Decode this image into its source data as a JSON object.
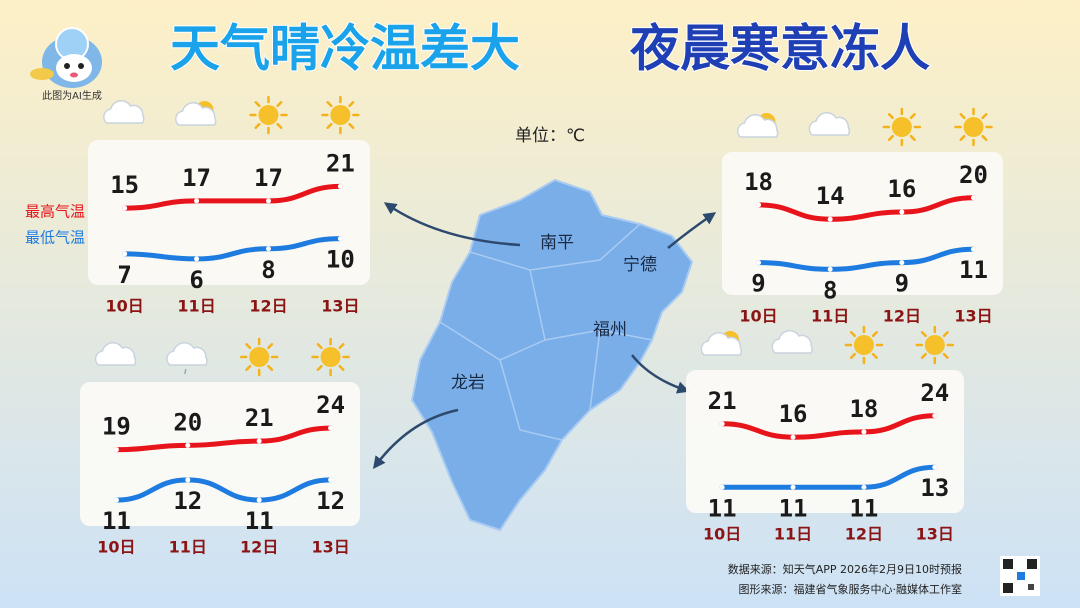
{
  "header": {
    "title_left": "天气晴冷温差大",
    "title_right": "夜晨寒意冻人",
    "ai_note": "此图为AI生成"
  },
  "unit": "单位：℃",
  "source": [
    "数据来源：知天气APP 2026年2月9日10时预报",
    "图形来源：福建省气象服务中心·融媒体工作室"
  ],
  "chart_data": [
    {
      "type": "line",
      "title": "南平",
      "categories": [
        "10日",
        "11日",
        "12日",
        "13日"
      ],
      "series": [
        {
          "name": "最高气温",
          "color": "#e8141b",
          "values": [
            15,
            17,
            17,
            21
          ]
        },
        {
          "name": "最低气温",
          "color": "#1e7be0",
          "values": [
            7,
            6,
            8,
            10
          ]
        }
      ]
    },
    {
      "type": "line",
      "title": "宁德",
      "categories": [
        "10日",
        "11日",
        "12日",
        "13日"
      ],
      "series": [
        {
          "color": "#e8141b",
          "values": [
            18,
            14,
            16,
            20
          ]
        },
        {
          "color": "#1e7be0",
          "values": [
            9,
            8,
            9,
            11
          ]
        }
      ]
    },
    {
      "type": "line",
      "title": "福州",
      "categories": [
        "10日",
        "11日",
        "12日",
        "13日"
      ],
      "series": [
        {
          "color": "#e8141b",
          "values": [
            21,
            16,
            18,
            24
          ]
        },
        {
          "color": "#1e7be0",
          "values": [
            11,
            11,
            11,
            13
          ]
        }
      ]
    },
    {
      "type": "line",
      "title": "龙岩",
      "categories": [
        "10日",
        "11日",
        "12日",
        "13日"
      ],
      "series": [
        {
          "color": "#e8141b",
          "values": [
            19,
            20,
            21,
            24
          ]
        },
        {
          "color": "#1e7be0",
          "values": [
            11,
            12,
            11,
            12
          ]
        }
      ]
    }
  ]
}
